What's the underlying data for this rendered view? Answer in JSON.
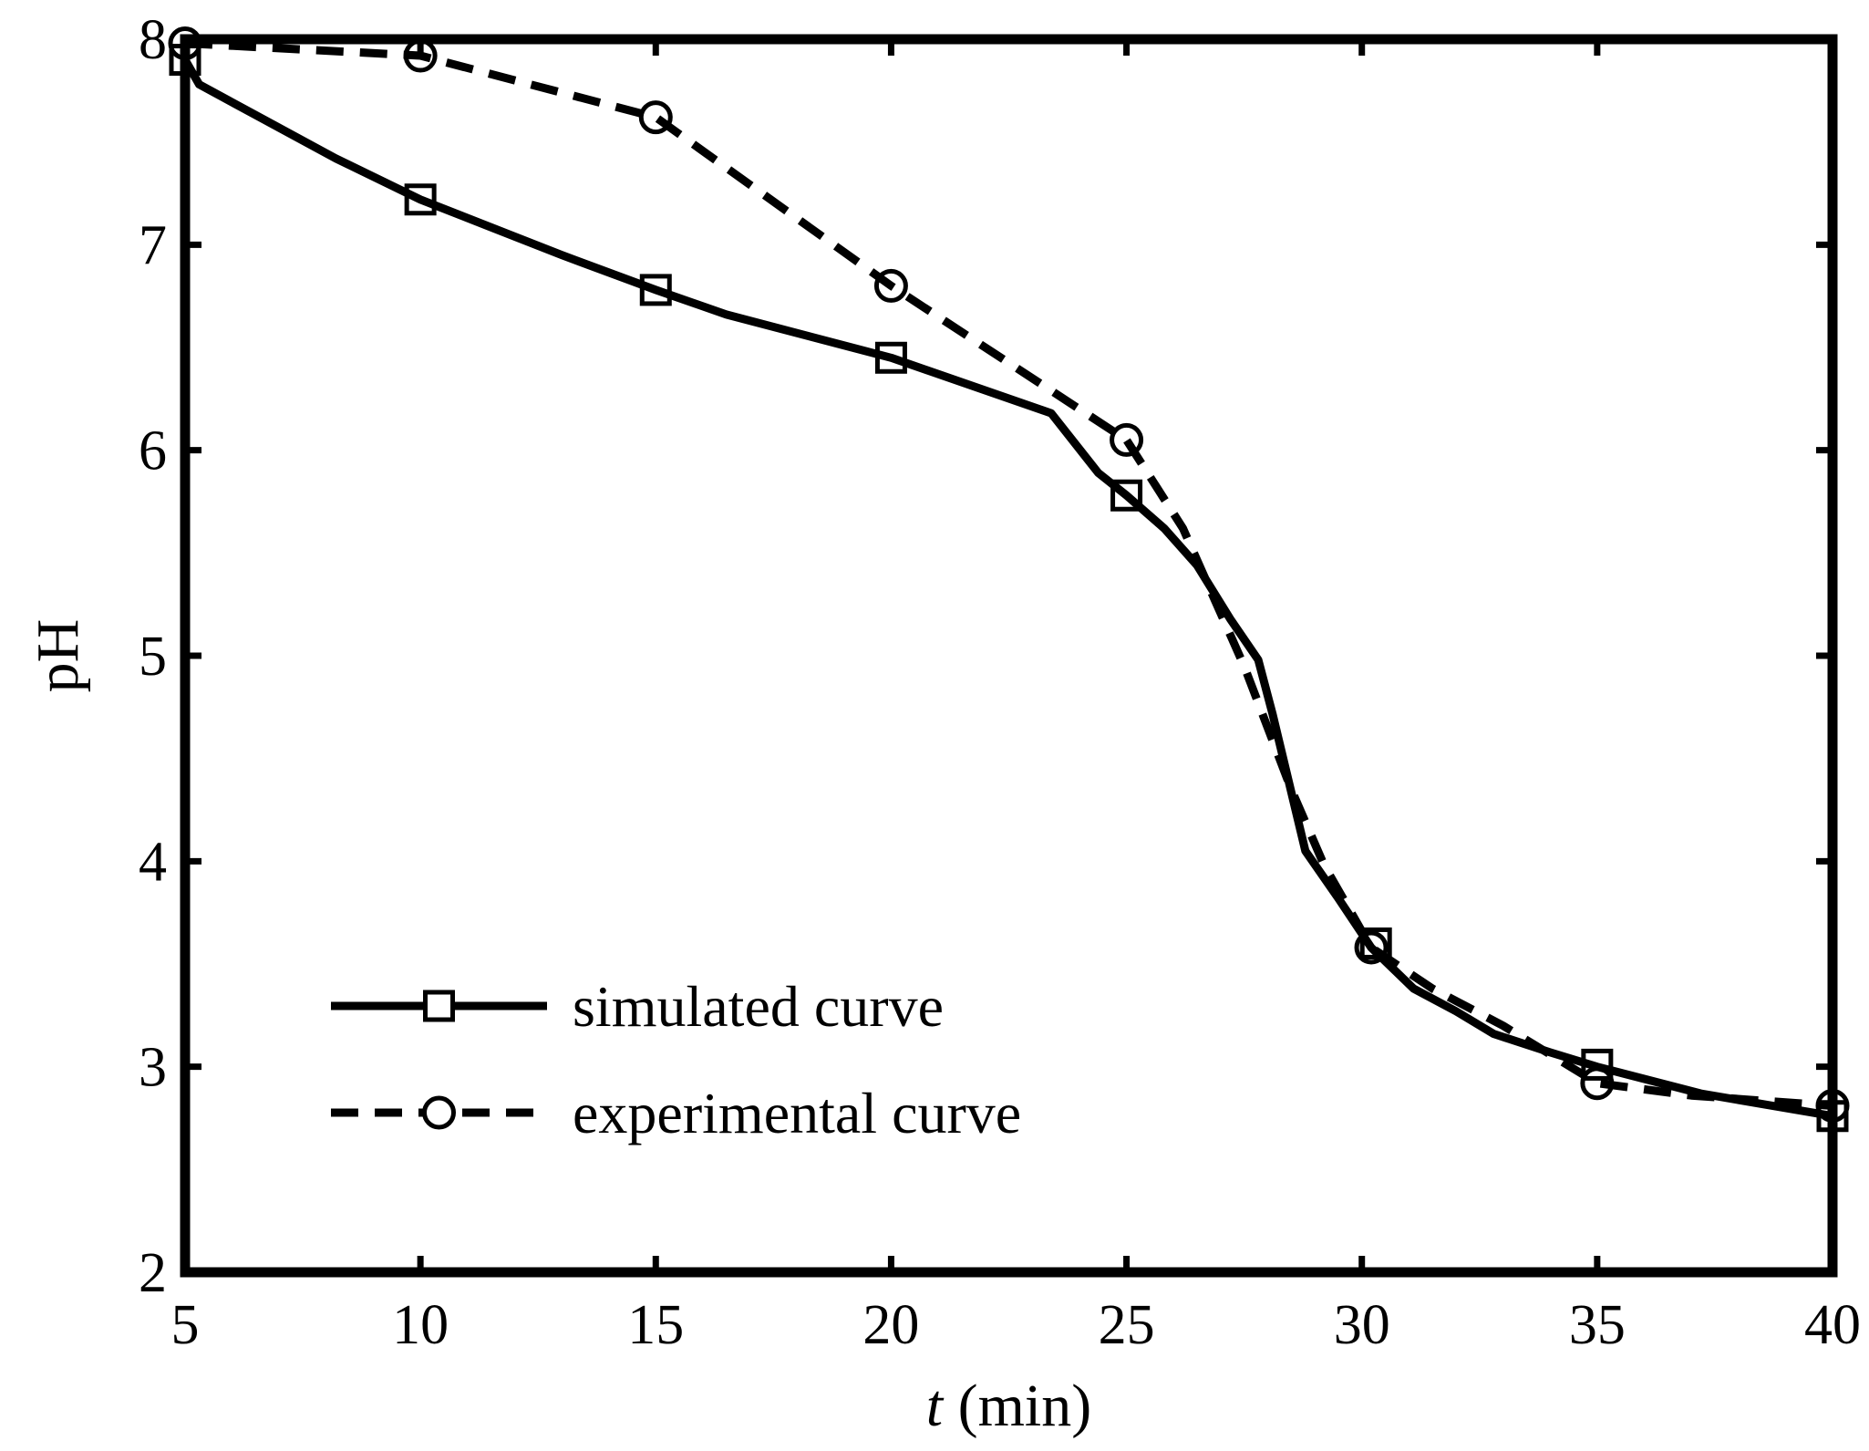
{
  "chart_data": {
    "type": "line",
    "title": "",
    "xlabel": {
      "italic": "t",
      "rest": " (min)"
    },
    "ylabel": "pH",
    "xlim": [
      5,
      40
    ],
    "ylim": [
      2,
      8
    ],
    "xticks": [
      5,
      10,
      15,
      20,
      25,
      30,
      35,
      40
    ],
    "yticks": [
      2,
      3,
      4,
      5,
      6,
      7,
      8
    ],
    "legend_position": "lower-left",
    "series": [
      {
        "name": "simulated curve",
        "style": "solid",
        "marker": "square",
        "color": "#000000",
        "x": [
          5,
          5.3,
          8.2,
          10,
          13,
          15,
          16.5,
          20,
          23.4,
          24.4,
          25,
          25.8,
          26.5,
          27.2,
          27.8,
          28.1,
          28.8,
          29.5,
          30.2,
          31.1,
          32,
          32.8,
          34,
          35,
          37.2,
          40
        ],
        "y": [
          7.9,
          7.78,
          7.42,
          7.22,
          6.95,
          6.78,
          6.66,
          6.45,
          6.18,
          5.89,
          5.78,
          5.62,
          5.44,
          5.18,
          4.98,
          4.72,
          4.05,
          3.82,
          3.58,
          3.38,
          3.27,
          3.16,
          3.07,
          3.0,
          2.87,
          2.76
        ],
        "marker_x": [
          5,
          10,
          15,
          20,
          25,
          30.3,
          35,
          40
        ],
        "marker_y": [
          7.9,
          7.22,
          6.78,
          6.45,
          5.78,
          3.6,
          3.01,
          2.76
        ]
      },
      {
        "name": "experimental curve",
        "style": "dashed",
        "marker": "circle",
        "color": "#000000",
        "x": [
          5,
          10,
          15,
          20,
          25,
          26.2,
          27.5,
          28.5,
          29.2,
          30.2,
          31.5,
          33,
          35,
          37,
          40
        ],
        "y": [
          7.98,
          7.92,
          7.62,
          6.8,
          6.05,
          5.62,
          4.95,
          4.35,
          3.98,
          3.58,
          3.38,
          3.2,
          2.92,
          2.86,
          2.81
        ],
        "marker_x": [
          5,
          10,
          15,
          20,
          25,
          30.2,
          35,
          40
        ],
        "marker_y": [
          7.98,
          7.92,
          7.62,
          6.8,
          6.05,
          3.58,
          2.92,
          2.81
        ]
      }
    ]
  }
}
